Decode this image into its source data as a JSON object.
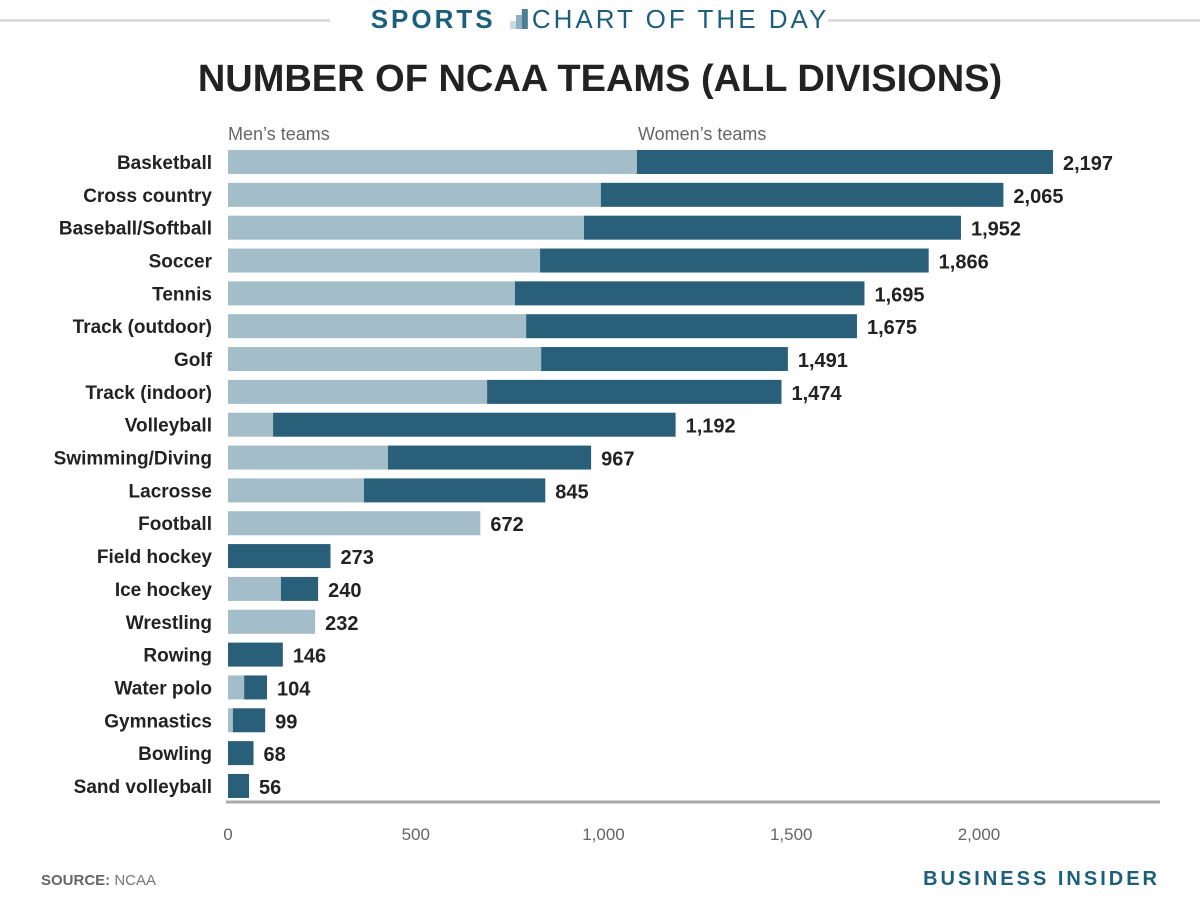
{
  "header": {
    "section": "SPORTS",
    "subtitle": "CHART OF THE DAY"
  },
  "footer": {
    "source_label": "SOURCE:",
    "source": "NCAA",
    "brand": "BUSINESS INSIDER"
  },
  "colors": {
    "men": "#a3bdc9",
    "women": "#2a5f7a",
    "accent": "#1b5f7d"
  },
  "chart_data": {
    "type": "bar",
    "orientation": "horizontal",
    "stacked": true,
    "title": "NUMBER OF NCAA TEAMS (ALL DIVISIONS)",
    "legend": [
      "Men’s teams",
      "Women’s teams"
    ],
    "categories": [
      "Basketball",
      "Cross country",
      "Baseball/Softball",
      "Soccer",
      "Tennis",
      "Track (outdoor)",
      "Golf",
      "Track (indoor)",
      "Volleyball",
      "Swimming/Diving",
      "Lacrosse",
      "Football",
      "Field hockey",
      "Ice hockey",
      "Wrestling",
      "Rowing",
      "Water polo",
      "Gymnastics",
      "Bowling",
      "Sand volleyball"
    ],
    "totals": [
      2197,
      2065,
      1952,
      1866,
      1695,
      1675,
      1491,
      1474,
      1192,
      967,
      845,
      672,
      273,
      240,
      232,
      146,
      104,
      99,
      68,
      56
    ],
    "total_labels": [
      "2,197",
      "2,065",
      "1,952",
      "1,866",
      "1,695",
      "1,675",
      "1,491",
      "1,474",
      "1,192",
      "967",
      "845",
      "672",
      "273",
      "240",
      "232",
      "146",
      "104",
      "99",
      "68",
      "56"
    ],
    "series": [
      {
        "name": "Men’s teams",
        "values": [
          1089,
          993,
          948,
          831,
          764,
          794,
          834,
          690,
          120,
          426,
          362,
          672,
          0,
          141,
          232,
          0,
          43,
          13,
          0,
          0
        ]
      },
      {
        "name": "Women’s teams",
        "values": [
          1108,
          1072,
          1004,
          1035,
          931,
          881,
          657,
          784,
          1072,
          541,
          483,
          0,
          273,
          99,
          0,
          146,
          61,
          86,
          68,
          56
        ]
      }
    ],
    "xticks": [
      0,
      500,
      1000,
      1500,
      2000
    ],
    "xtick_labels": [
      "0",
      "500",
      "1,000",
      "1,500",
      "2,000"
    ],
    "xlim": [
      0,
      2480
    ]
  }
}
